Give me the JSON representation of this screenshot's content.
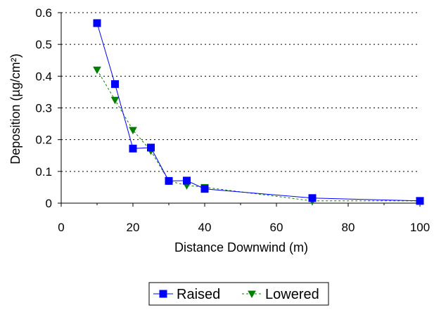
{
  "chart_data": {
    "type": "line",
    "title": "",
    "xlabel": "Distance Downwind (m)",
    "ylabel": "Deposition (µg/cm²)",
    "xlim": [
      0,
      100
    ],
    "ylim": [
      0,
      0.6
    ],
    "xticks": [
      0,
      20,
      40,
      60,
      80,
      100
    ],
    "yticks": [
      0,
      0.1,
      0.2,
      0.3,
      0.4,
      0.5,
      0.6
    ],
    "xtick_labels": [
      "0",
      "20",
      "40",
      "60",
      "80",
      "100"
    ],
    "ytick_labels": [
      "0",
      "0.1",
      "0.2",
      "0.3",
      "0.4",
      "0.5",
      "0.6"
    ],
    "grid": "horizontal dotted",
    "legend_position": "bottom",
    "series": [
      {
        "name": "Raised",
        "color": "#0000ff",
        "marker": "square",
        "line_style": "solid",
        "x": [
          10,
          15,
          20,
          25,
          30,
          35,
          40,
          70,
          100
        ],
        "y": [
          0.567,
          0.375,
          0.172,
          0.175,
          0.07,
          0.071,
          0.045,
          0.016,
          0.007
        ]
      },
      {
        "name": "Lowered",
        "color": "#008000",
        "marker": "triangle-down",
        "line_style": "dotted",
        "x": [
          10,
          15,
          20,
          25,
          30,
          35,
          40,
          70,
          100
        ],
        "y": [
          0.42,
          0.325,
          0.23,
          0.165,
          0.07,
          0.056,
          0.05,
          0.007,
          0.007
        ]
      }
    ]
  }
}
